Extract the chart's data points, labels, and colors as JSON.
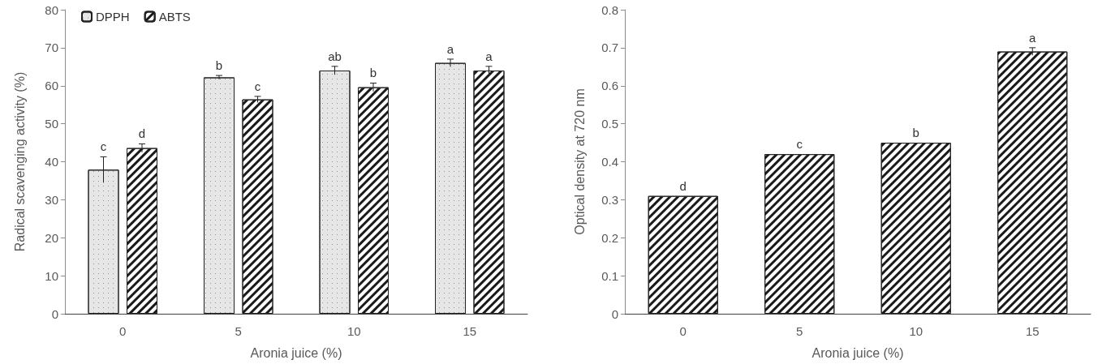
{
  "chart_data": [
    {
      "type": "bar",
      "xlabel": "Aronia juice (%)",
      "ylabel": "Radical scavenging activity (%)",
      "categories": [
        "0",
        "5",
        "10",
        "15"
      ],
      "series": [
        {
          "name": "DPPH",
          "color": "#e6e6e6",
          "values": [
            37.9,
            62.2,
            64.0,
            66.0
          ],
          "errors": [
            3.4,
            0.5,
            1.1,
            1.0
          ],
          "value_labels": [
            "c",
            "b",
            "ab",
            "a"
          ]
        },
        {
          "name": "ABTS",
          "color": "#ffffff",
          "values": [
            43.6,
            56.4,
            59.6,
            64.0
          ],
          "errors": [
            1.1,
            0.8,
            1.1,
            1.1
          ],
          "value_labels": [
            "d",
            "c",
            "b",
            "a"
          ]
        }
      ],
      "ylim": [
        0,
        80
      ],
      "yticks": [
        0,
        10,
        20,
        30,
        40,
        50,
        60,
        70,
        80
      ],
      "grid": false,
      "legend": "top left"
    },
    {
      "type": "bar",
      "xlabel": "Aronia juice (%)",
      "ylabel": "Optical density at 720 nm",
      "categories": [
        "0",
        "5",
        "10",
        "15"
      ],
      "series": [
        {
          "color": "#ffffff",
          "values": [
            0.31,
            0.42,
            0.45,
            0.69
          ],
          "errors": [
            null,
            null,
            null,
            0.01
          ],
          "value_labels": [
            "d",
            "c",
            "b",
            "a"
          ]
        }
      ],
      "ylim": [
        0,
        0.8
      ],
      "yticks": [
        0,
        0.1,
        0.2,
        0.3,
        0.4,
        0.5,
        0.6,
        0.7,
        0.8
      ],
      "grid": false
    }
  ]
}
